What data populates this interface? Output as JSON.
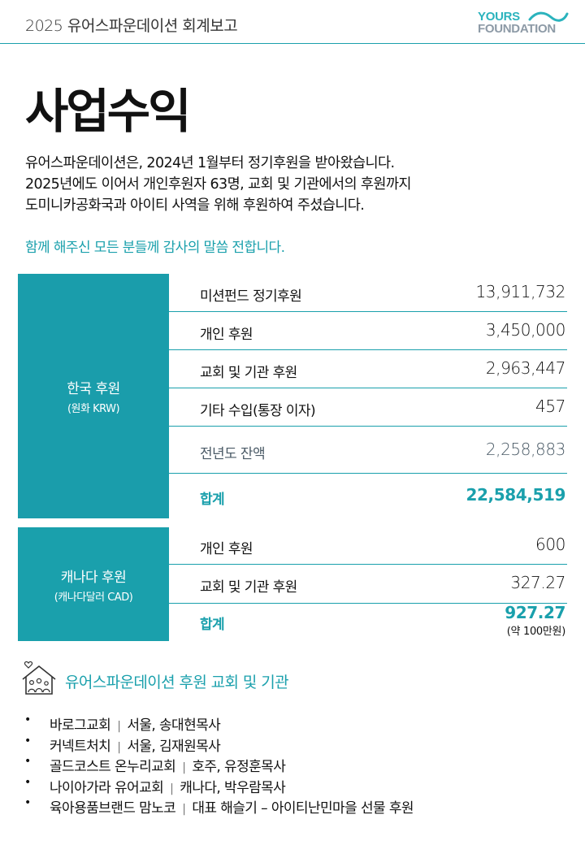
{
  "header": {
    "title": "2025 유어스파운데이션 회계보고",
    "logo_line1": "YOURS",
    "logo_line2": "FOUNDATION"
  },
  "page_title": "사업수익",
  "intro": [
    "유어스파운데이션은, 2024년 1월부터 정기후원을 받아왔습니다.",
    "2025년에도 이어서 개인후원자 63명, 교회 및 기관에서의 후원까지",
    "도미니카공화국과 아이티 사역을 위해 후원하여 주셨습니다."
  ],
  "thanks": "함께 해주신 모든 분들께 감사의 말씀 전합니다.",
  "korea": {
    "name": "한국 후원",
    "currency": "(원화 KRW)",
    "rows": [
      {
        "label": "미션펀드 정기후원",
        "value": "13,911,732"
      },
      {
        "label": "개인 후원",
        "value": "3,450,000"
      },
      {
        "label": "교회 및 기관 후원",
        "value": "2,963,447"
      },
      {
        "label": "기타 수입(통장 이자)",
        "value": "457"
      },
      {
        "label": "전년도 잔액",
        "value": "2,258,883"
      },
      {
        "label": "합계",
        "value": "22,584,519"
      }
    ]
  },
  "canada": {
    "name": "캐나다 후원",
    "currency": "(캐나다달러 CAD)",
    "rows": [
      {
        "label": "개인 후원",
        "value": "600"
      },
      {
        "label": "교회 및 기관 후원",
        "value": "327.27"
      },
      {
        "label": "합계",
        "value": "927.27"
      }
    ],
    "total_note": "(약 100만원)"
  },
  "sponsors": {
    "title": "유어스파운데이션 후원 교회 및 기관",
    "icon": "house-family-icon",
    "items": [
      {
        "name": "바로그교회",
        "detail": "서울, 송대현목사"
      },
      {
        "name": "커넥트처치",
        "detail": "서울, 김재원목사"
      },
      {
        "name": "골드코스트 온누리교회",
        "detail": "호주, 유정훈목사"
      },
      {
        "name": "나이아가라 유어교회",
        "detail": "캐나다, 박우람목사"
      },
      {
        "name": "육아용품브랜드 맘노코",
        "detail": "대표 해슬기 – 아이티난민마을 선물 후원"
      }
    ]
  },
  "colors": {
    "accent": "#1aa0ac",
    "korea_block": "#1a9dab",
    "muted_text": "#4a5a66"
  }
}
